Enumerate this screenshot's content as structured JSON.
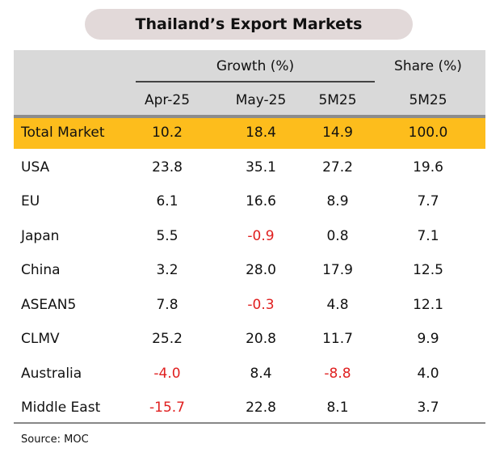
{
  "chart_data": {
    "type": "table",
    "title": "Thailand’s Export Markets",
    "group_headers": [
      "Growth (%)",
      "Share (%)"
    ],
    "columns": [
      "Apr-25",
      "May-25",
      "5M25",
      "5M25"
    ],
    "rows": [
      {
        "label": "Total Market",
        "values": [
          "10.2",
          "18.4",
          "14.9",
          "100.0"
        ],
        "highlight": true
      },
      {
        "label": "USA",
        "values": [
          "23.8",
          "35.1",
          "27.2",
          "19.6"
        ]
      },
      {
        "label": "EU",
        "values": [
          "6.1",
          "16.6",
          "8.9",
          "7.7"
        ]
      },
      {
        "label": "Japan",
        "values": [
          "5.5",
          "-0.9",
          "0.8",
          "7.1"
        ]
      },
      {
        "label": "China",
        "values": [
          "3.2",
          "28.0",
          "17.9",
          "12.5"
        ]
      },
      {
        "label": "ASEAN5",
        "values": [
          "7.8",
          "-0.3",
          "4.8",
          "12.1"
        ]
      },
      {
        "label": "CLMV",
        "values": [
          "25.2",
          "20.8",
          "11.7",
          "9.9"
        ]
      },
      {
        "label": "Australia",
        "values": [
          "-4.0",
          "8.4",
          "-8.8",
          "4.0"
        ]
      },
      {
        "label": "Middle East",
        "values": [
          "-15.7",
          "22.8",
          "8.1",
          "3.7"
        ]
      }
    ],
    "source": "Source: MOC",
    "colors": {
      "highlight": "#fdbd1c",
      "negative": "#e02020",
      "header": "#d9d9d9"
    }
  }
}
